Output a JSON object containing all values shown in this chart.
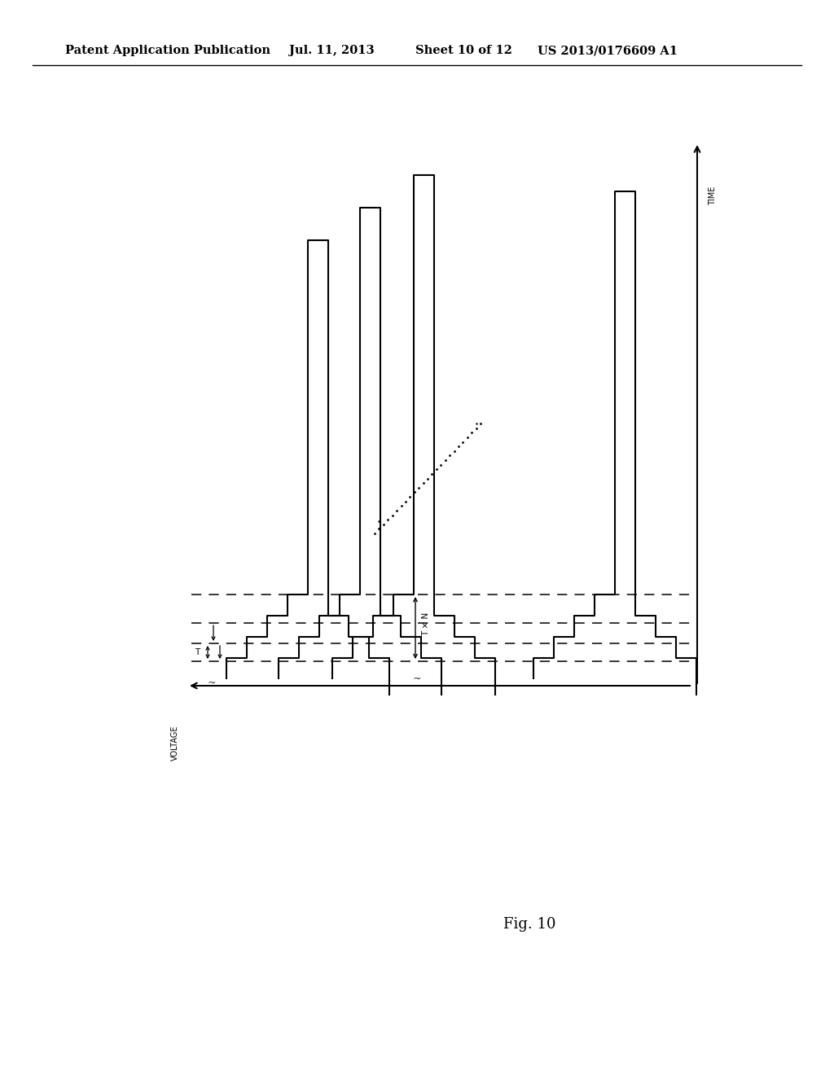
{
  "title_line1": "Patent Application Publication",
  "title_line2": "Jul. 11, 2013",
  "title_line3": "Sheet 10 of 12",
  "title_line4": "US 2013/0176609 A1",
  "fig_label": "Fig. 10",
  "voltage_label": "VOLTAGE",
  "time_label": "TIME",
  "background_color": "#ffffff",
  "line_color": "#000000",
  "header_fontsize": 10.5,
  "axis_label_fontsize": 8.5,
  "fig_label_fontsize": 13,
  "annotation_fontsize": 8
}
